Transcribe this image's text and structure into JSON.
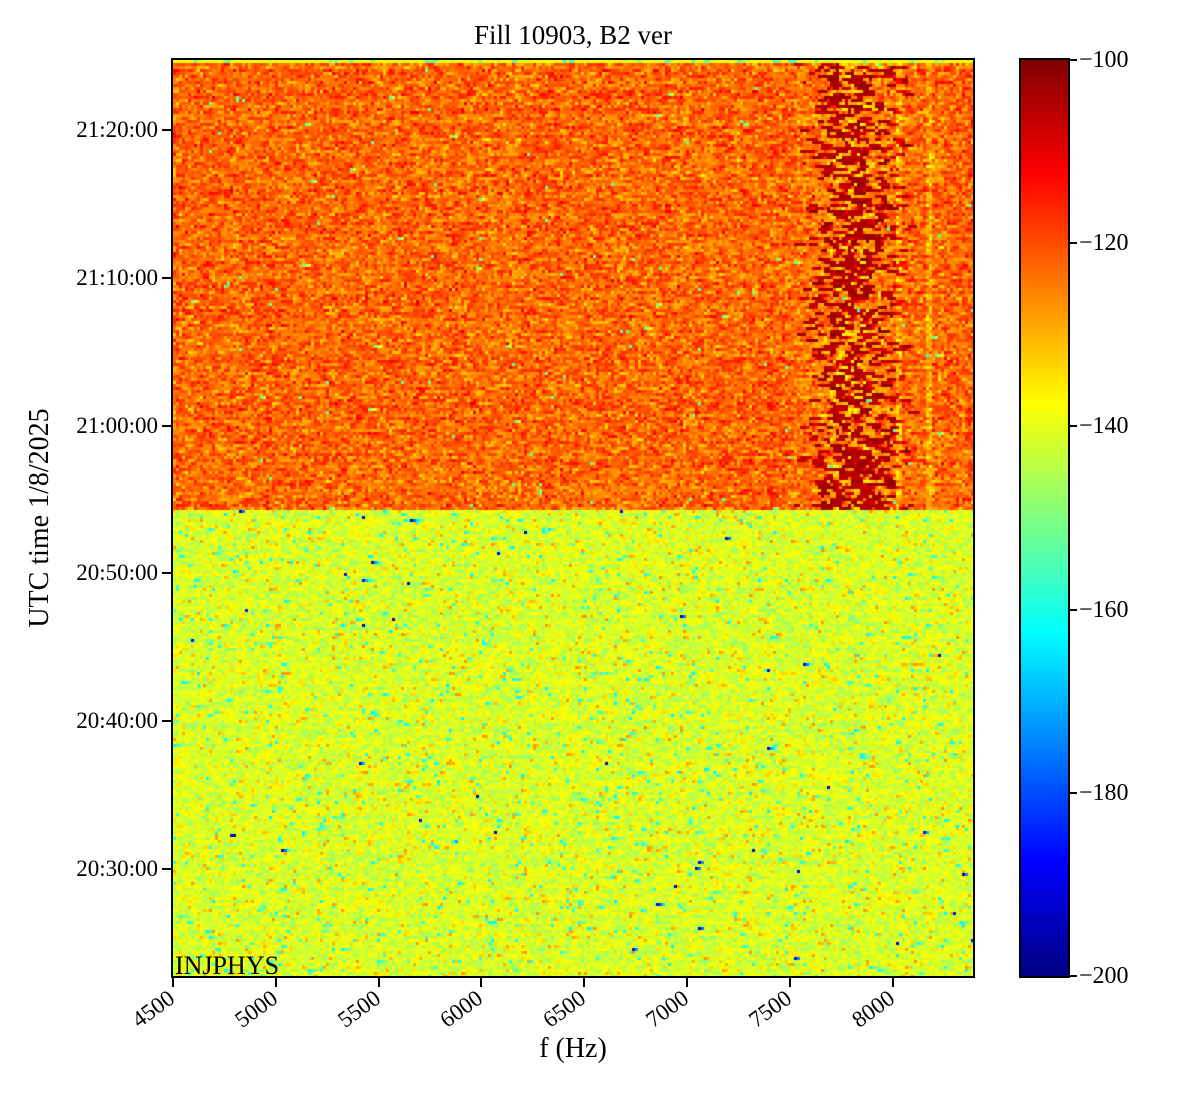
{
  "figure": {
    "title": "Fill 10903, B2 ver",
    "xlabel": "f (Hz)",
    "ylabel": "UTC time 1/8/2025",
    "annotation": "INJPHYS"
  },
  "chart_data": {
    "type": "heatmap",
    "subtype": "spectrogram",
    "title": "Fill 10903, B2 ver",
    "xlabel": "f (Hz)",
    "ylabel": "UTC time 1/8/2025",
    "annotation_text": "INJPHYS",
    "x_axis": {
      "min": 4500,
      "max": 8390,
      "ticks": [
        4500,
        5000,
        5500,
        6000,
        6500,
        7000,
        7500,
        8000
      ],
      "tick_rotation_deg": 36
    },
    "y_time_axis": {
      "date_label": "1/8/2025",
      "top_time": "21:24:45",
      "bottom_time": "20:22:45",
      "ticks": [
        "21:20:00",
        "21:10:00",
        "21:00:00",
        "20:50:00",
        "20:40:00",
        "20:30:00"
      ]
    },
    "colorbar": {
      "colormap": "jet",
      "vmin": -200,
      "vmax": -100,
      "ticks": [
        -100,
        -120,
        -140,
        -160,
        -180,
        -200
      ],
      "gradient_stops": [
        {
          "pos": 0.0,
          "color": "#000083"
        },
        {
          "pos": 0.125,
          "color": "#0000ff"
        },
        {
          "pos": 0.375,
          "color": "#00ffff"
        },
        {
          "pos": 0.625,
          "color": "#ffff00"
        },
        {
          "pos": 0.875,
          "color": "#ff0000"
        },
        {
          "pos": 1.0,
          "color": "#800000"
        }
      ]
    },
    "regions": [
      {
        "name": "quiet-noise-floor",
        "time_from": "20:22:45",
        "time_to": "20:54:20",
        "f_from": 4500,
        "f_to": 8390,
        "mean_level": -141,
        "noise_sigma": 3.5,
        "appearance": "yellow-green noise with cyan and orange speckles"
      },
      {
        "name": "elevated-noise-floor",
        "time_from": "20:54:20",
        "time_to": "21:24:45",
        "f_from": 4500,
        "f_to": 8390,
        "mean_level": -122,
        "noise_sigma": 4.5,
        "appearance": "orange-red noise with yellow speckles"
      },
      {
        "name": "dark-comb-band",
        "time_from": "20:54:20",
        "time_to": "21:24:45",
        "f_from": 7550,
        "f_to": 8050,
        "peak_level": -102,
        "appearance": "dense dark-red horizontal dashes"
      },
      {
        "name": "narrow-line",
        "f": 8020,
        "level_delta": -7
      },
      {
        "name": "narrow-line",
        "f": 8160,
        "level_delta": -7
      },
      {
        "name": "top-edge-strip",
        "mean_level": -139,
        "appearance": "thin yellow strip with green speckles along top edge"
      }
    ]
  }
}
